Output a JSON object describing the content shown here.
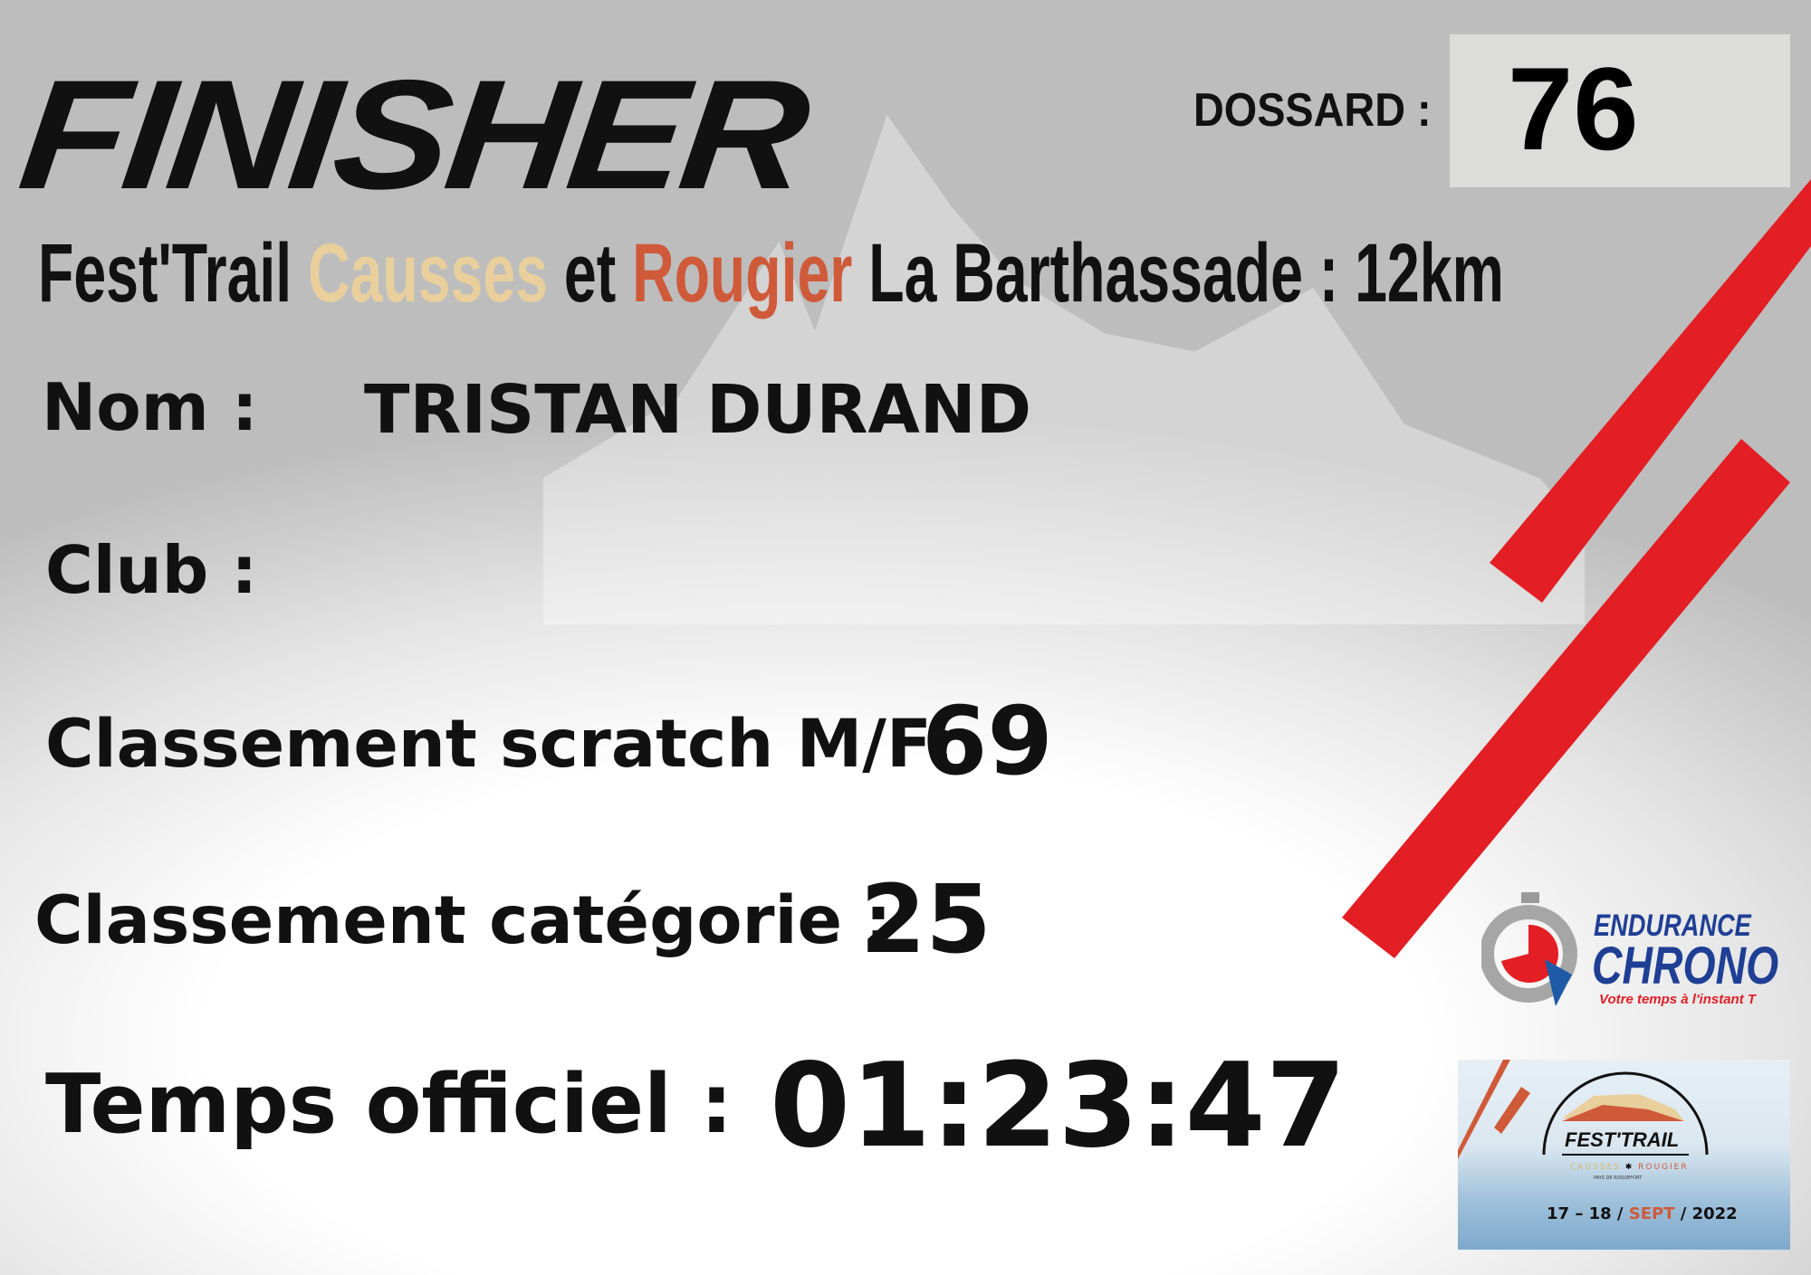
{
  "header": {
    "title": "FINISHER",
    "dossard_label": "DOSSARD :",
    "dossard_number": "76"
  },
  "event": {
    "part1": "Fest'Trail ",
    "part2": "Causses",
    "part3": " et ",
    "part4": "Rougier",
    "part5": " La Barthassade : 12km",
    "color_causses": "#e8cf9c",
    "color_rougier": "#cf5a3a"
  },
  "fields": {
    "nom_label": "Nom :",
    "nom_value": "TRISTAN DURAND",
    "club_label": "Club :",
    "scratch_label": "Classement scratch M/F:",
    "scratch_value": "69",
    "categorie_label": "Classement catégorie :",
    "categorie_value": "25",
    "temps_label": "Temps officiel :",
    "temps_value": "01:23:47"
  },
  "logos": {
    "endurance_top": "ENDURANCE",
    "endurance_bottom": "CHRONO",
    "endurance_tagline": "Votre temps à l'instant T",
    "festtrail_name": "FEST'TRAIL",
    "festtrail_causses": "CAUSSES",
    "festtrail_rougier": "ROUGIER",
    "festtrail_sub": "PAYS DE ROQUEFORT",
    "festtrail_days": "17 – 18",
    "festtrail_month": "SEPT",
    "festtrail_year": "2022"
  },
  "colors": {
    "accent_red": "#e31e24",
    "chrono_blue": "#1f3f95"
  }
}
